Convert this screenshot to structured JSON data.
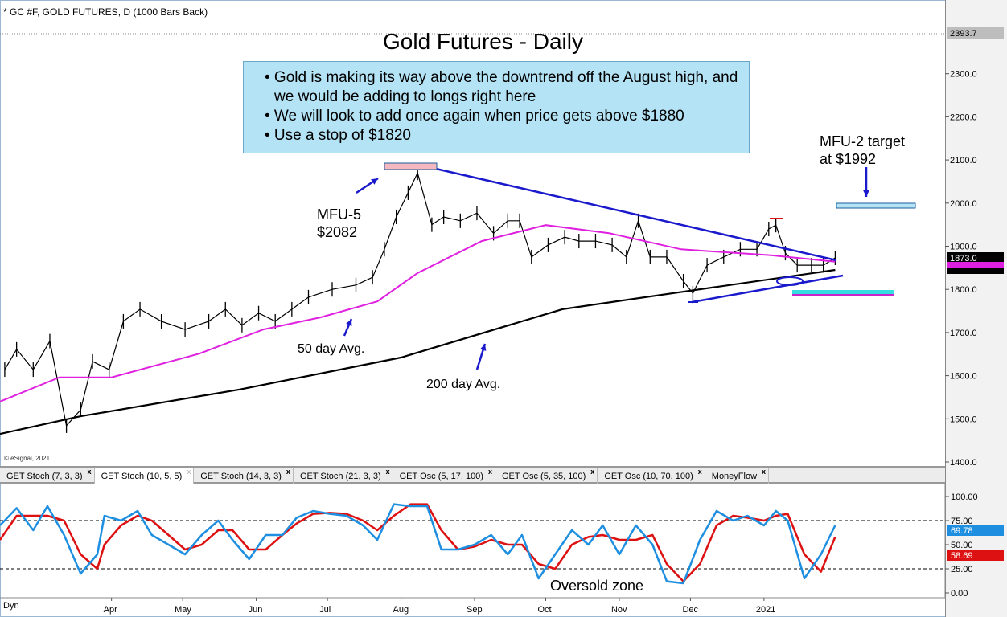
{
  "header": "* GC #F, GOLD FUTURES, D (1000 Bars Back)",
  "title": "Gold Futures - Daily",
  "notes": [
    "• Gold is making its way above the downtrend off the August high, and we would be adding to longs right here",
    "• We will look to add once again when price gets above $1880",
    "• Use a stop of $1820"
  ],
  "annotations": {
    "mfu5_line1": "MFU-5",
    "mfu5_line2": "$2082",
    "mfu2_line1": "MFU-2 target",
    "mfu2_line2": "at $1992",
    "ma50": "50 day Avg.",
    "ma200": "200 day Avg.",
    "oversold": "Oversold zone"
  },
  "copyright": "© eSignal, 2021",
  "tabs": [
    {
      "label": "GET Stoch (7, 3, 3)",
      "active": false
    },
    {
      "label": "GET Stoch (10, 5, 5)",
      "active": true
    },
    {
      "label": "GET Stoch (14, 3, 3)",
      "active": false
    },
    {
      "label": "GET Stoch (21, 3, 3)",
      "active": false
    },
    {
      "label": "GET Osc (5, 17, 100)",
      "active": false
    },
    {
      "label": "GET Osc (5, 35, 100)",
      "active": false
    },
    {
      "label": "GET Osc (10, 70, 100)",
      "active": false
    },
    {
      "label": "MoneyFlow",
      "active": false
    }
  ],
  "tab_close": "x",
  "bottom_left": "Dyn",
  "colors": {
    "price": "#000000",
    "ma50": "#e020e0",
    "ma200": "#000000",
    "trendline": "#1a1acc",
    "stoch_k": "#1e8fe0",
    "stoch_d": "#dd1111",
    "box": "#b4e3f5"
  },
  "chart_data": [
    {
      "type": "line",
      "title": "Gold Futures - Daily",
      "ylim": [
        1400,
        2400
      ],
      "y_ticks": [
        "1400.0",
        "1500.0",
        "1600.0",
        "1700.0",
        "1800.0",
        "1900.0",
        "2000.0",
        "2100.0",
        "2200.0",
        "2300.0"
      ],
      "x_ticks": [
        "Apr",
        "May",
        "Jun",
        "Jul",
        "Aug",
        "Sep",
        "Oct",
        "Nov",
        "Dec",
        "2021"
      ],
      "price_tags": {
        "high": "2393.7",
        "last": "1873.0"
      },
      "series": [
        {
          "name": "price",
          "points": [
            [
              "2020-02-16",
              1614
            ],
            [
              "2020-02-21",
              1661
            ],
            [
              "2020-02-28",
              1614
            ],
            [
              "2020-03-06",
              1680
            ],
            [
              "2020-03-13",
              1484
            ],
            [
              "2020-03-19",
              1521
            ],
            [
              "2020-03-24",
              1633
            ],
            [
              "2020-03-31",
              1614
            ],
            [
              "2020-04-06",
              1726
            ],
            [
              "2020-04-13",
              1754
            ],
            [
              "2020-04-22",
              1726
            ],
            [
              "2020-05-02",
              1707
            ],
            [
              "2020-05-12",
              1726
            ],
            [
              "2020-05-19",
              1754
            ],
            [
              "2020-05-26",
              1717
            ],
            [
              "2020-06-02",
              1745
            ],
            [
              "2020-06-09",
              1726
            ],
            [
              "2020-06-16",
              1754
            ],
            [
              "2020-06-23",
              1782
            ],
            [
              "2020-07-03",
              1800
            ],
            [
              "2020-07-13",
              1810
            ],
            [
              "2020-07-20",
              1828
            ],
            [
              "2020-07-25",
              1893
            ],
            [
              "2020-07-30",
              1968
            ],
            [
              "2020-08-04",
              2024
            ],
            [
              "2020-08-08",
              2070
            ],
            [
              "2020-08-14",
              1950
            ],
            [
              "2020-08-19",
              1968
            ],
            [
              "2020-08-26",
              1959
            ],
            [
              "2020-09-02",
              1977
            ],
            [
              "2020-09-09",
              1930
            ],
            [
              "2020-09-15",
              1959
            ],
            [
              "2020-09-20",
              1959
            ],
            [
              "2020-09-25",
              1875
            ],
            [
              "2020-10-02",
              1903
            ],
            [
              "2020-10-09",
              1921
            ],
            [
              "2020-10-15",
              1912
            ],
            [
              "2020-10-22",
              1912
            ],
            [
              "2020-10-29",
              1903
            ],
            [
              "2020-11-04",
              1875
            ],
            [
              "2020-11-09",
              1959
            ],
            [
              "2020-11-14",
              1875
            ],
            [
              "2020-11-21",
              1875
            ],
            [
              "2020-11-28",
              1819
            ],
            [
              "2020-12-02",
              1791
            ],
            [
              "2020-12-08",
              1856
            ],
            [
              "2020-12-15",
              1875
            ],
            [
              "2020-12-22",
              1893
            ],
            [
              "2020-12-29",
              1893
            ],
            [
              "2021-01-03",
              1940
            ],
            [
              "2021-01-06",
              1949
            ],
            [
              "2021-01-10",
              1884
            ],
            [
              "2021-01-15",
              1856
            ],
            [
              "2021-01-21",
              1856
            ],
            [
              "2021-01-26",
              1856
            ],
            [
              "2021-01-31",
              1873
            ]
          ]
        },
        {
          "name": "50 day Avg.",
          "points": [
            [
              "2020-02-14",
              1540
            ],
            [
              "2020-03-10",
              1596
            ],
            [
              "2020-04-01",
              1596
            ],
            [
              "2020-05-08",
              1651
            ],
            [
              "2020-06-04",
              1707
            ],
            [
              "2020-06-28",
              1735
            ],
            [
              "2020-07-22",
              1772
            ],
            [
              "2020-08-08",
              1838
            ],
            [
              "2020-09-04",
              1912
            ],
            [
              "2020-10-01",
              1949
            ],
            [
              "2020-10-28",
              1930
            ],
            [
              "2020-11-27",
              1893
            ],
            [
              "2021-01-04",
              1879
            ],
            [
              "2021-01-31",
              1864
            ]
          ]
        },
        {
          "name": "200 day Avg.",
          "points": [
            [
              "2020-02-14",
              1465
            ],
            [
              "2020-03-19",
              1506
            ],
            [
              "2020-05-25",
              1568
            ],
            [
              "2020-08-01",
              1642
            ],
            [
              "2020-10-08",
              1754
            ],
            [
              "2020-12-01",
              1797
            ],
            [
              "2021-01-31",
              1845
            ]
          ]
        }
      ]
    },
    {
      "type": "line",
      "ylim": [
        0,
        100
      ],
      "y_ticks": [
        "0.00",
        "25.00",
        "50.00",
        "75.00",
        "100.00"
      ],
      "reference_lines": [
        25,
        75
      ],
      "last_values": {
        "k": "69.78",
        "d": "58.69"
      },
      "dates": [
        "2020-02-14",
        "2020-02-21",
        "2020-02-28",
        "2020-03-05",
        "2020-03-12",
        "2020-03-19",
        "2020-03-26",
        "2020-03-29",
        "2020-04-05",
        "2020-04-12",
        "2020-04-18",
        "2020-04-25",
        "2020-05-02",
        "2020-05-09",
        "2020-05-16",
        "2020-05-22",
        "2020-05-29",
        "2020-06-05",
        "2020-06-12",
        "2020-06-18",
        "2020-06-25",
        "2020-07-02",
        "2020-07-09",
        "2020-07-16",
        "2020-07-22",
        "2020-07-29",
        "2020-08-05",
        "2020-08-12",
        "2020-08-18",
        "2020-08-25",
        "2020-09-01",
        "2020-09-08",
        "2020-09-15",
        "2020-09-21",
        "2020-09-28",
        "2020-10-05",
        "2020-10-12",
        "2020-10-19",
        "2020-10-25",
        "2020-11-01",
        "2020-11-08",
        "2020-11-15",
        "2020-11-21",
        "2020-11-28",
        "2020-12-05",
        "2020-12-12",
        "2020-12-19",
        "2020-12-25",
        "2021-01-01",
        "2021-01-06",
        "2021-01-11",
        "2021-01-18",
        "2021-01-25",
        "2021-01-31"
      ],
      "series": [
        {
          "name": "k",
          "values": [
            70,
            88,
            65,
            90,
            60,
            20,
            40,
            80,
            75,
            85,
            60,
            50,
            40,
            60,
            75,
            55,
            35,
            60,
            60,
            78,
            85,
            82,
            80,
            70,
            55,
            92,
            90,
            90,
            45,
            45,
            50,
            60,
            40,
            60,
            15,
            40,
            65,
            50,
            70,
            40,
            70,
            50,
            12,
            10,
            55,
            85,
            75,
            80,
            70,
            85,
            75,
            15,
            40,
            70
          ]
        },
        {
          "name": "d",
          "values": [
            55,
            80,
            80,
            80,
            75,
            40,
            25,
            50,
            70,
            80,
            75,
            60,
            45,
            50,
            65,
            65,
            45,
            45,
            60,
            72,
            82,
            83,
            82,
            75,
            65,
            80,
            92,
            92,
            65,
            45,
            48,
            55,
            50,
            50,
            30,
            25,
            50,
            58,
            60,
            55,
            55,
            60,
            30,
            12,
            30,
            70,
            80,
            78,
            75,
            80,
            82,
            40,
            22,
            58
          ]
        }
      ]
    }
  ]
}
